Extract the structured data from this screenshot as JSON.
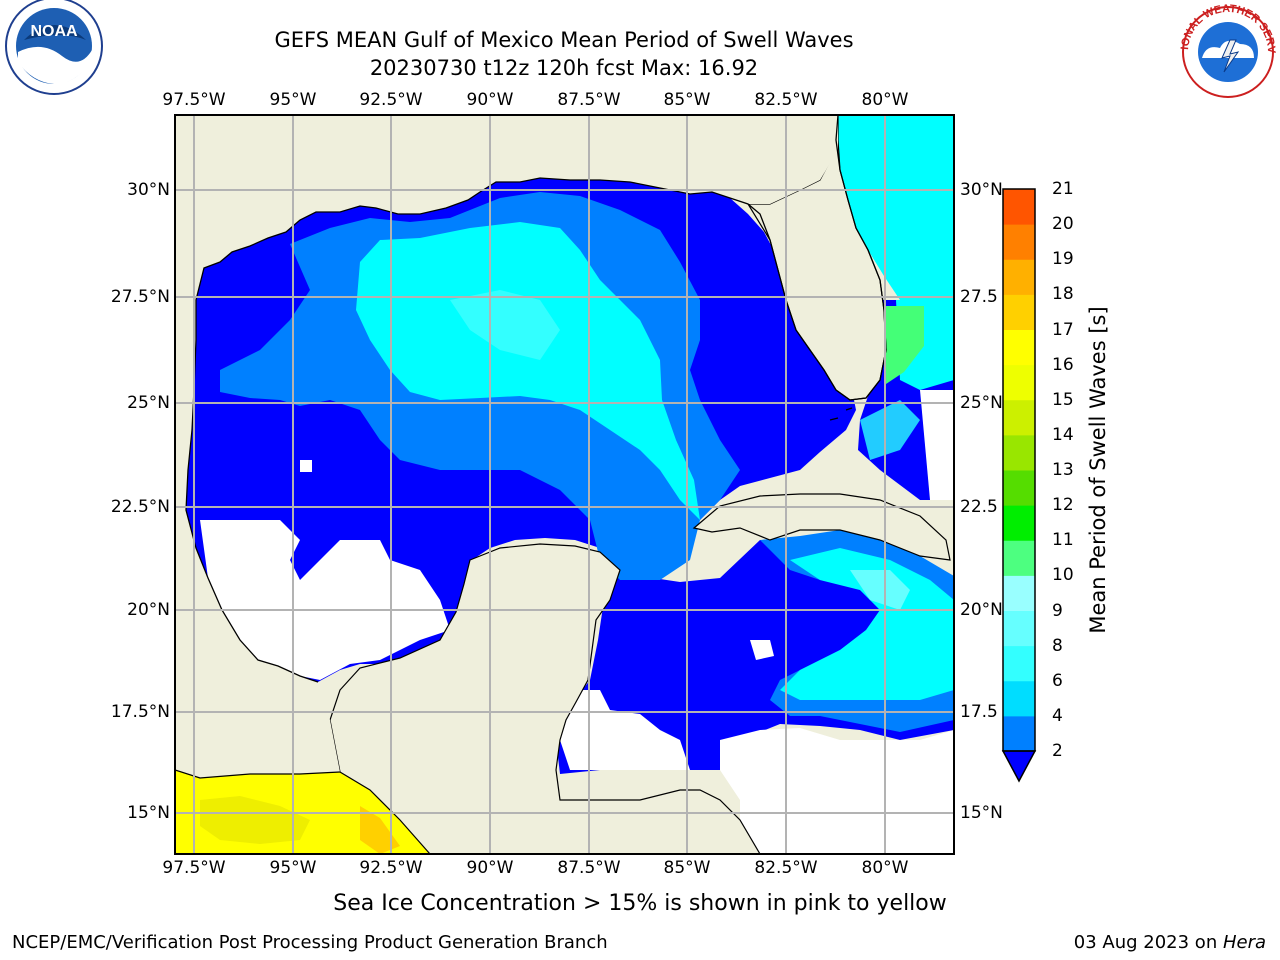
{
  "header": {
    "title_line1": "GEFS MEAN Gulf of Mexico Mean Period of Swell Waves",
    "title_line2": "20230730 t12z 120h fcst   Max: 16.92"
  },
  "logos": {
    "left": "NOAA",
    "right": "NATIONAL WEATHER SERVICE"
  },
  "map": {
    "lon_labels": [
      "97.5°W",
      "95°W",
      "92.5°W",
      "90°W",
      "87.5°W",
      "85°W",
      "82.5°W",
      "80°W"
    ],
    "lat_labels_left": [
      "30°N",
      "27.5°N",
      "25°N",
      "22.5°N",
      "20°N",
      "17.5°N",
      "15°N"
    ],
    "lat_labels_right": [
      "30°N",
      "27.5",
      "25°N",
      "22.5",
      "20°N",
      "17.5",
      "15°N"
    ],
    "colors": {
      "land": "#efefdc",
      "grid": "#b3b3b3",
      "coast": "#000000"
    }
  },
  "colorbar": {
    "label": "Mean Period of Swell Waves [s]",
    "ticks": [
      "2",
      "4",
      "6",
      "8",
      "9",
      "10",
      "11",
      "12",
      "13",
      "14",
      "15",
      "16",
      "17",
      "18",
      "19",
      "20",
      "21"
    ],
    "colors": [
      "#0080ff",
      "#00ddff",
      "#33ffff",
      "#66ffff",
      "#99ffff",
      "#4dff80",
      "#00ee00",
      "#55dd00",
      "#99e600",
      "#ccf000",
      "#eeff00",
      "#ffff00",
      "#ffd000",
      "#ffb000",
      "#ff8000",
      "#ff5500",
      "#ff2a00",
      "#ff0000"
    ],
    "extend_color": "#0000ff"
  },
  "footer": {
    "sea_ice_note": "Sea Ice Concentration > 15% is shown in pink to yellow",
    "credit": "NCEP/EMC/Verification Post Processing Product Generation Branch",
    "date_prefix": "03 Aug 2023 on ",
    "date_machine": "Hera"
  }
}
